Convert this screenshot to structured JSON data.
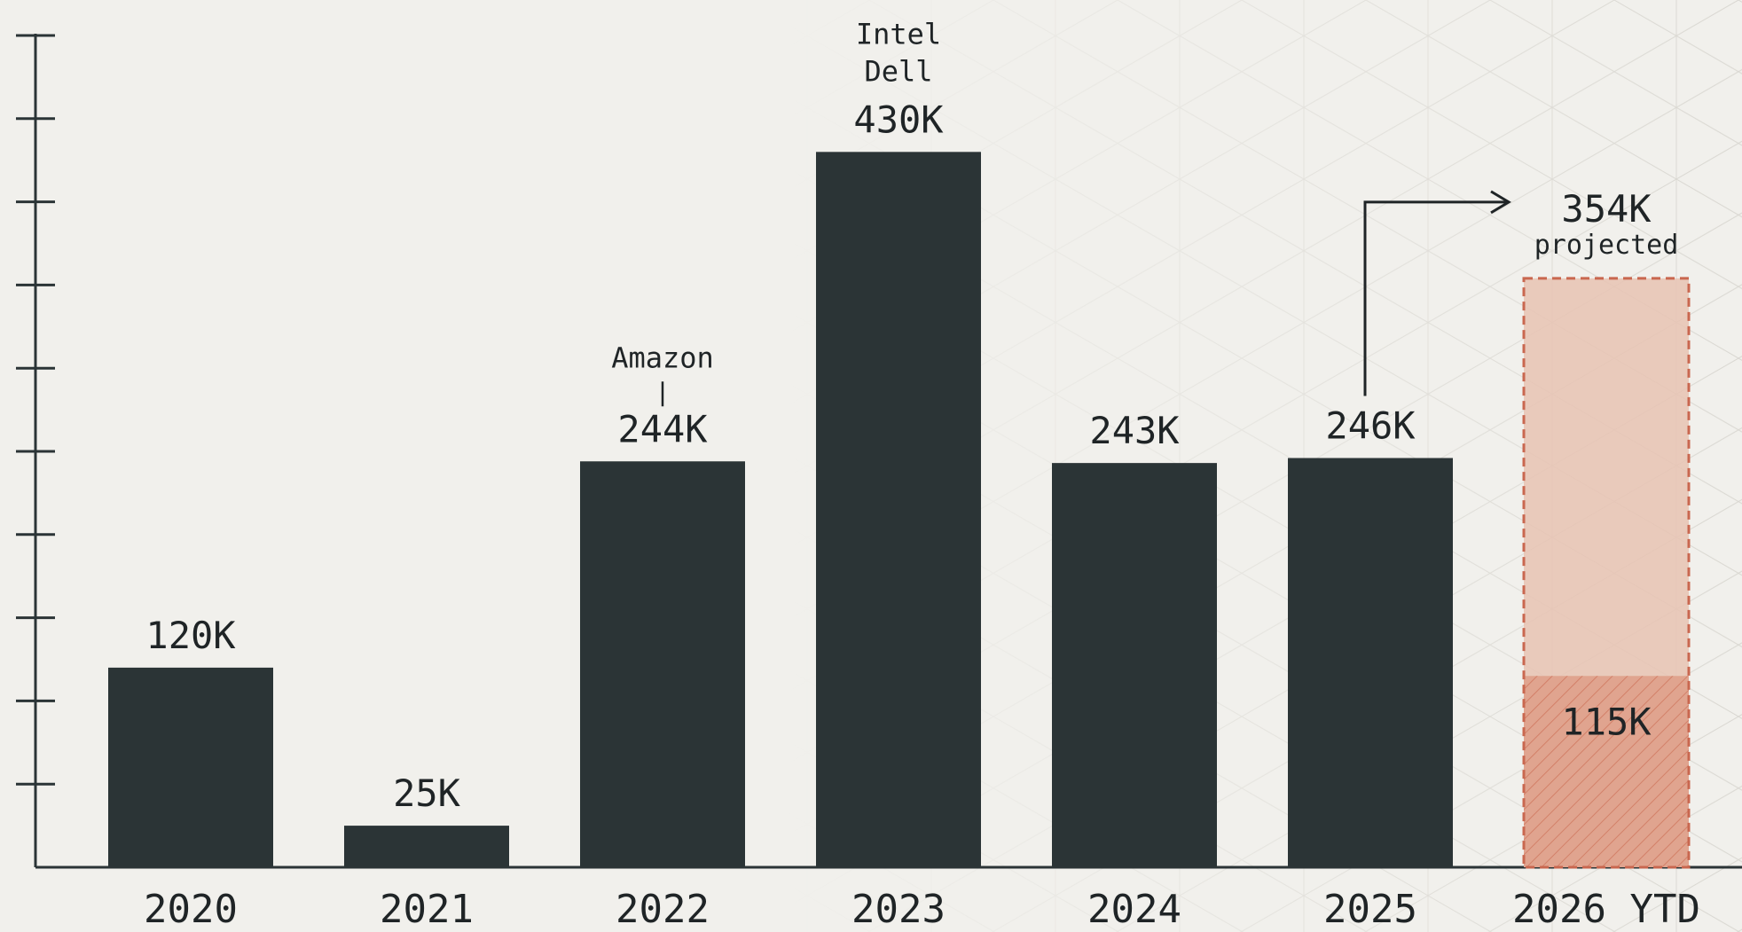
{
  "chart_data": {
    "type": "bar",
    "categories": [
      "2020",
      "2021",
      "2022",
      "2023",
      "2024",
      "2025",
      "2026 YTD"
    ],
    "values": [
      120000,
      25000,
      244000,
      430000,
      243000,
      246000,
      115000
    ],
    "value_labels": [
      "120K",
      "25K",
      "244K",
      "430K",
      "243K",
      "246K",
      "115K"
    ],
    "projected": {
      "category": "2026 YTD",
      "value": 354000,
      "value_label": "354K",
      "label": "projected"
    },
    "annotations": [
      {
        "category": "2022",
        "lines": [
          "Amazon"
        ]
      },
      {
        "category": "2023",
        "lines": [
          "Intel",
          "Dell"
        ]
      }
    ],
    "ylim": [
      0,
      500000
    ],
    "y_ticks": [
      0,
      50000,
      100000,
      150000,
      200000,
      250000,
      300000,
      350000,
      400000,
      450000,
      500000
    ],
    "y_tick_labels_shown": false,
    "title": "",
    "xlabel": "",
    "ylabel": "",
    "grid": false,
    "colors": {
      "bar": "#2b3436",
      "projected_fill": "#e8c3b3",
      "projected_border": "#c9674f",
      "ytd_fill": "#e0a48f",
      "hatch": "#c9674f",
      "axis": "#2b3436",
      "text": "#1f2426",
      "background": "#f1f0ec"
    }
  }
}
